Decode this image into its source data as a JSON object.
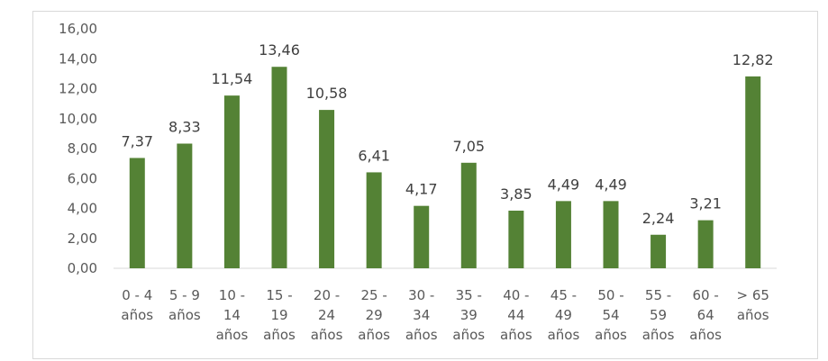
{
  "chart_data": {
    "type": "bar",
    "title": "",
    "xlabel": "",
    "ylabel": "",
    "ylim": [
      0,
      16
    ],
    "yticks": [
      "0,00",
      "2,00",
      "4,00",
      "6,00",
      "8,00",
      "10,00",
      "12,00",
      "14,00",
      "16,00"
    ],
    "grid": false,
    "bar_color": "#548235",
    "categories": [
      [
        "0 - 4",
        "años"
      ],
      [
        "5 - 9",
        "años"
      ],
      [
        "10 -",
        "14",
        "años"
      ],
      [
        "15 -",
        "19",
        "años"
      ],
      [
        "20 -",
        "24",
        "años"
      ],
      [
        "25 -",
        "29",
        "años"
      ],
      [
        "30 -",
        "34",
        "años"
      ],
      [
        "35 -",
        "39",
        "años"
      ],
      [
        "40 -",
        "44",
        "años"
      ],
      [
        "45 -",
        "49",
        "años"
      ],
      [
        "50 -",
        "54",
        "años"
      ],
      [
        "55 -",
        "59",
        "años"
      ],
      [
        "60 -",
        "64",
        "años"
      ],
      [
        "> 65",
        "años"
      ]
    ],
    "values": [
      7.37,
      8.33,
      11.54,
      13.46,
      10.58,
      6.41,
      4.17,
      7.05,
      3.85,
      4.49,
      4.49,
      2.24,
      3.21,
      12.82
    ],
    "data_labels": [
      "7,37",
      "8,33",
      "11,54",
      "13,46",
      "10,58",
      "6,41",
      "4,17",
      "7,05",
      "3,85",
      "4,49",
      "4,49",
      "2,24",
      "3,21",
      "12,82"
    ]
  }
}
